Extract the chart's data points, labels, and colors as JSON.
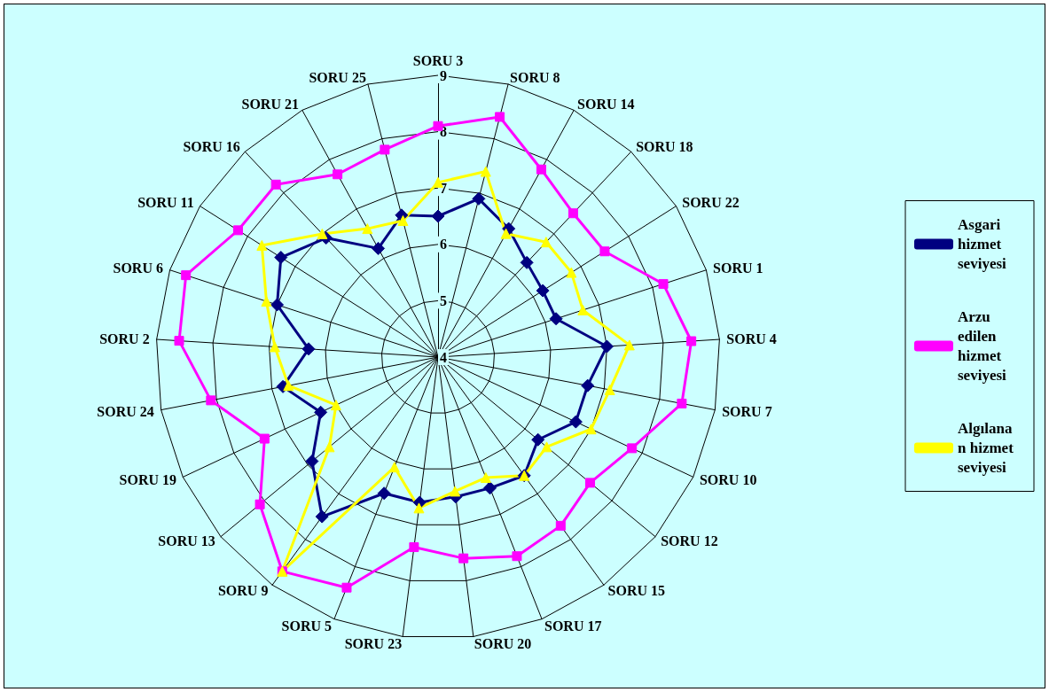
{
  "chart_data": {
    "type": "radar",
    "categories": [
      "SORU 3",
      "SORU 8",
      "SORU 14",
      "SORU 18",
      "SORU 22",
      "SORU 1",
      "SORU 4",
      "SORU 7",
      "SORU 10",
      "SORU 12",
      "SORU 15",
      "SORU 17",
      "SORU 20",
      "SORU 23",
      "SORU 5",
      "SORU 9",
      "SORU 13",
      "SORU 19",
      "SORU 24",
      "SORU 2",
      "SORU 6",
      "SORU 11",
      "SORU 16",
      "SORU 21",
      "SORU 25"
    ],
    "series": [
      {
        "name": "Asgari hizmet seviyesi",
        "color": "#000080",
        "marker": "diamond",
        "values": [
          6.5,
          6.9,
          6.6,
          6.3,
          6.2,
          6.2,
          7.0,
          6.7,
          6.7,
          6.3,
          6.6,
          6.5,
          6.5,
          6.6,
          6.6,
          7.5,
          6.9,
          6.3,
          6.8,
          6.3,
          7.0,
          7.3,
          6.9,
          6.2,
          6.6
        ]
      },
      {
        "name": "Arzu edilen hizmet seviyesi",
        "color": "#ff00ff",
        "marker": "square",
        "values": [
          8.1,
          8.4,
          7.8,
          7.5,
          7.5,
          8.2,
          8.5,
          8.4,
          7.8,
          7.5,
          7.7,
          7.8,
          7.6,
          7.4,
          8.4,
          8.7,
          8.1,
          7.4,
          8.1,
          8.6,
          8.7,
          8.2,
          8.2,
          7.7,
          7.8
        ]
      },
      {
        "name": "Algılanan hizmet seviyesi",
        "color": "#ffff00",
        "marker": "triangle",
        "values": [
          7.1,
          7.4,
          6.5,
          6.8,
          6.8,
          6.7,
          7.4,
          7.1,
          7.0,
          6.5,
          6.6,
          6.3,
          6.4,
          6.7,
          6.1,
          8.7,
          6.5,
          6.0,
          6.7,
          6.9,
          7.2,
          7.7,
          7.0,
          6.6,
          6.5
        ]
      }
    ],
    "ylim": [
      4,
      9
    ],
    "yticks": [
      4,
      5,
      6,
      7,
      8,
      9
    ],
    "grid": true,
    "legend": "right",
    "line_style": "solid"
  }
}
